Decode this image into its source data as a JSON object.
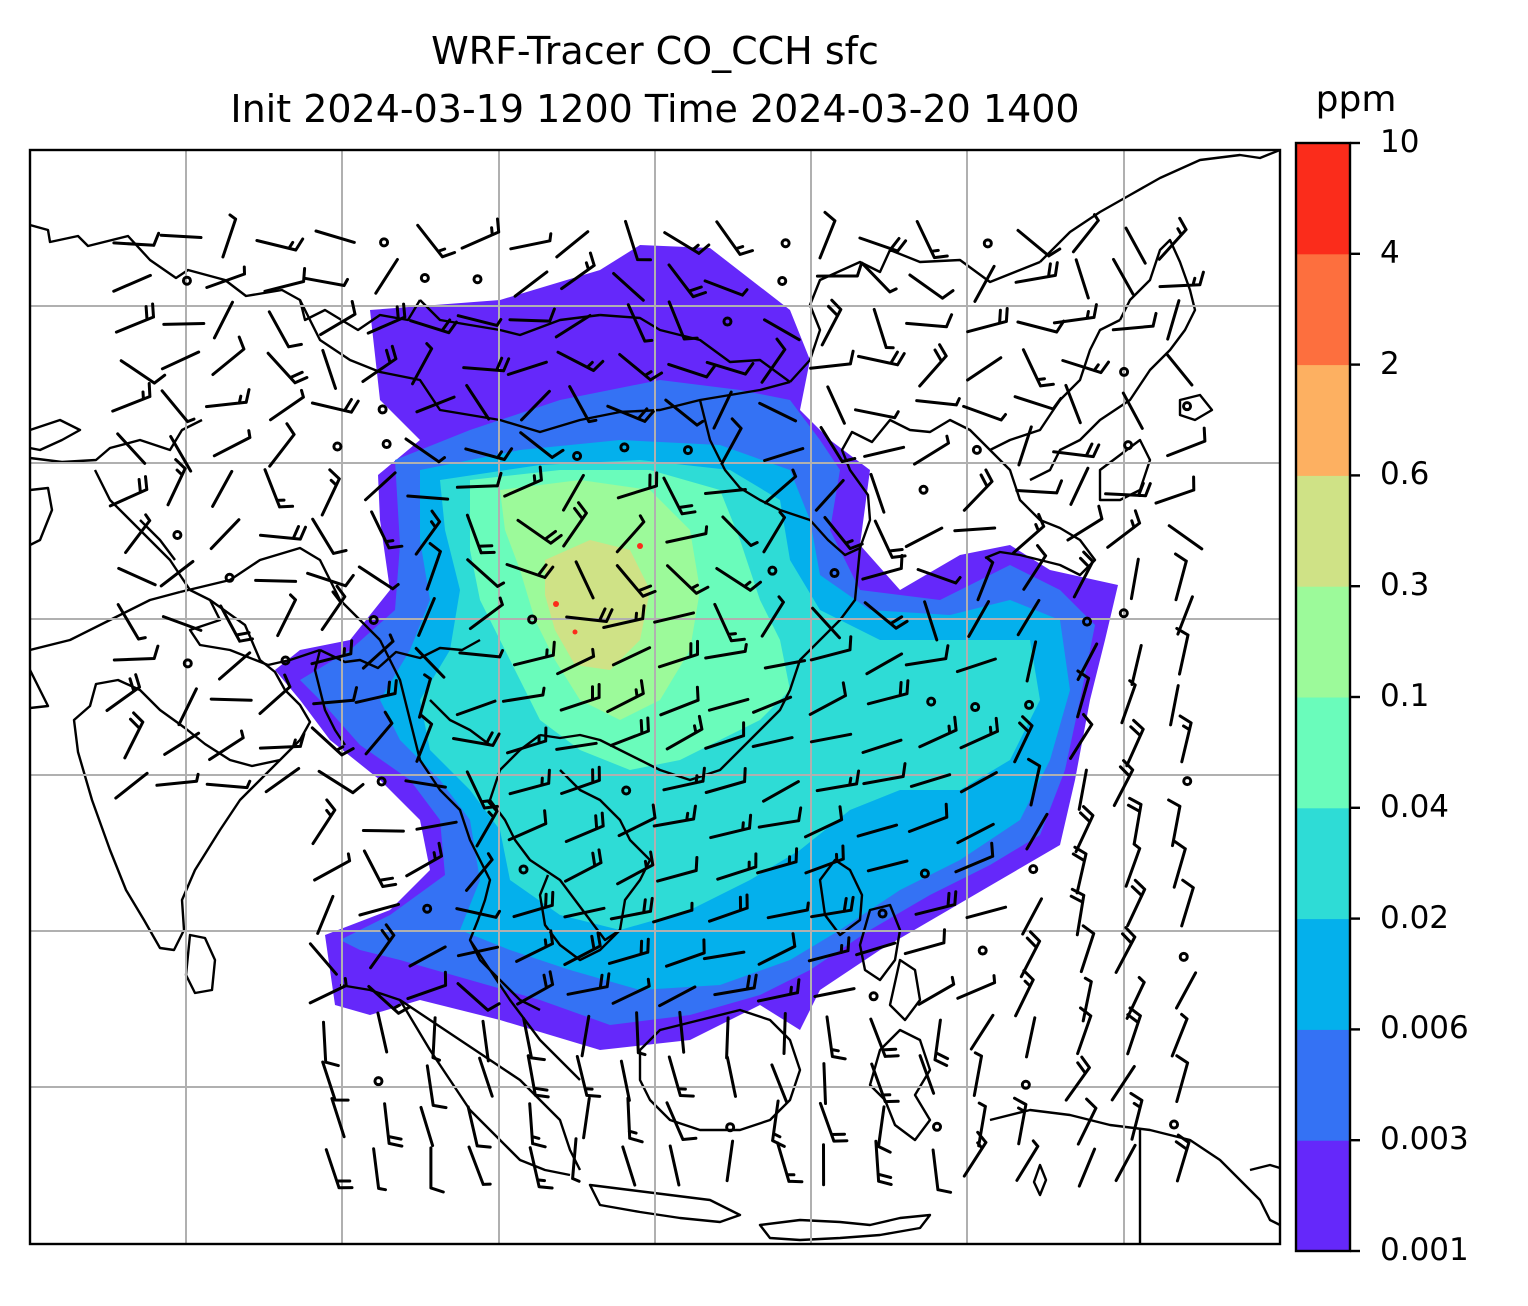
{
  "title": {
    "line1": "WRF-Tracer CO_CCH sfc",
    "line2": "Init 2024-03-19 1200 Time 2024-03-20 1400"
  },
  "colorbar": {
    "unit": "ppm",
    "ticks": [
      "10",
      "4",
      "2",
      "0.6",
      "0.3",
      "0.1",
      "0.04",
      "0.02",
      "0.006",
      "0.003",
      "0.001"
    ],
    "colors": [
      "#6528fa",
      "#3472f4",
      "#04b0ec",
      "#2edcd6",
      "#6afcbb",
      "#9cfa9a",
      "#cfe286",
      "#fdb061",
      "#fd6f3e",
      "#fb2c1b"
    ]
  },
  "map": {
    "field_colors": {
      "lowest": "#6528fa",
      "low": "#3472f4",
      "mid": "#04b0ec",
      "mid_high": "#2edcd6",
      "high": "#6afcbb",
      "higher": "#9cfa9a",
      "peak": "#cfe286",
      "extreme": "#fb2c1b"
    },
    "gridline_color": "#b0b0b0",
    "coastline_color": "#000000"
  }
}
